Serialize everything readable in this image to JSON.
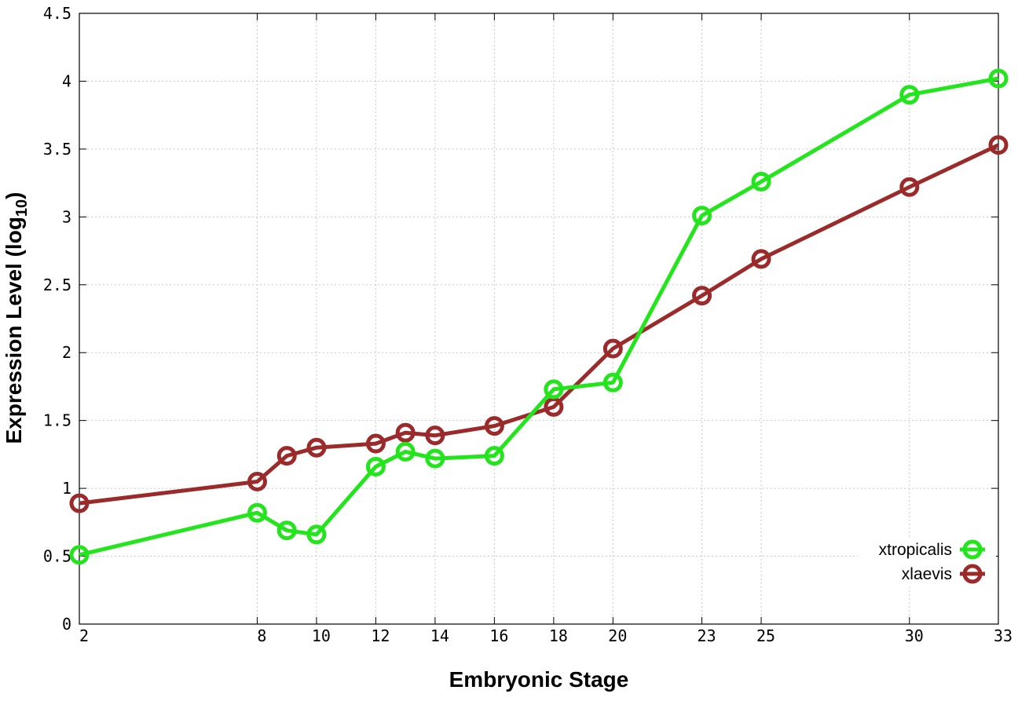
{
  "chart_data": {
    "type": "line",
    "xlabel": "Embryonic Stage",
    "ylabel_main": "Expression Level (log",
    "ylabel_sub": "10",
    "ylabel_close": ")",
    "ylim": [
      0,
      4.5
    ],
    "xlim": [
      2,
      33
    ],
    "x_ticks": [
      {
        "value": 2,
        "label": "2"
      },
      {
        "value": 8,
        "label": "8"
      },
      {
        "value": 10,
        "label": "10"
      },
      {
        "value": 12,
        "label": "12"
      },
      {
        "value": 14,
        "label": "14"
      },
      {
        "value": 16,
        "label": "16"
      },
      {
        "value": 18,
        "label": "18"
      },
      {
        "value": 20,
        "label": "20"
      },
      {
        "value": 23,
        "label": "23"
      },
      {
        "value": 25,
        "label": "25"
      },
      {
        "value": 30,
        "label": "30"
      },
      {
        "value": 33,
        "label": "33"
      }
    ],
    "y_ticks": [
      {
        "value": 0,
        "label": "0"
      },
      {
        "value": 0.5,
        "label": "0.5"
      },
      {
        "value": 1,
        "label": "1"
      },
      {
        "value": 1.5,
        "label": "1.5"
      },
      {
        "value": 2,
        "label": "2"
      },
      {
        "value": 2.5,
        "label": "2.5"
      },
      {
        "value": 3,
        "label": "3"
      },
      {
        "value": 3.5,
        "label": "3.5"
      },
      {
        "value": 4,
        "label": "4"
      },
      {
        "value": 4.5,
        "label": "4.5"
      }
    ],
    "grid": true,
    "legend_position": "bottom-right",
    "x": [
      2,
      8,
      9,
      10,
      12,
      13,
      14,
      16,
      18,
      20,
      23,
      25,
      30,
      33
    ],
    "series": [
      {
        "name": "xtropicalis",
        "color": "#22e51c",
        "values": [
          0.51,
          0.82,
          0.69,
          0.66,
          1.16,
          1.27,
          1.22,
          1.24,
          1.73,
          1.78,
          3.01,
          3.26,
          3.9,
          4.02
        ]
      },
      {
        "name": "xlaevis",
        "color": "#9b2a2a",
        "values": [
          0.89,
          1.05,
          1.24,
          1.3,
          1.33,
          1.41,
          1.39,
          1.46,
          1.6,
          2.03,
          2.42,
          2.69,
          3.22,
          3.53
        ]
      }
    ]
  }
}
